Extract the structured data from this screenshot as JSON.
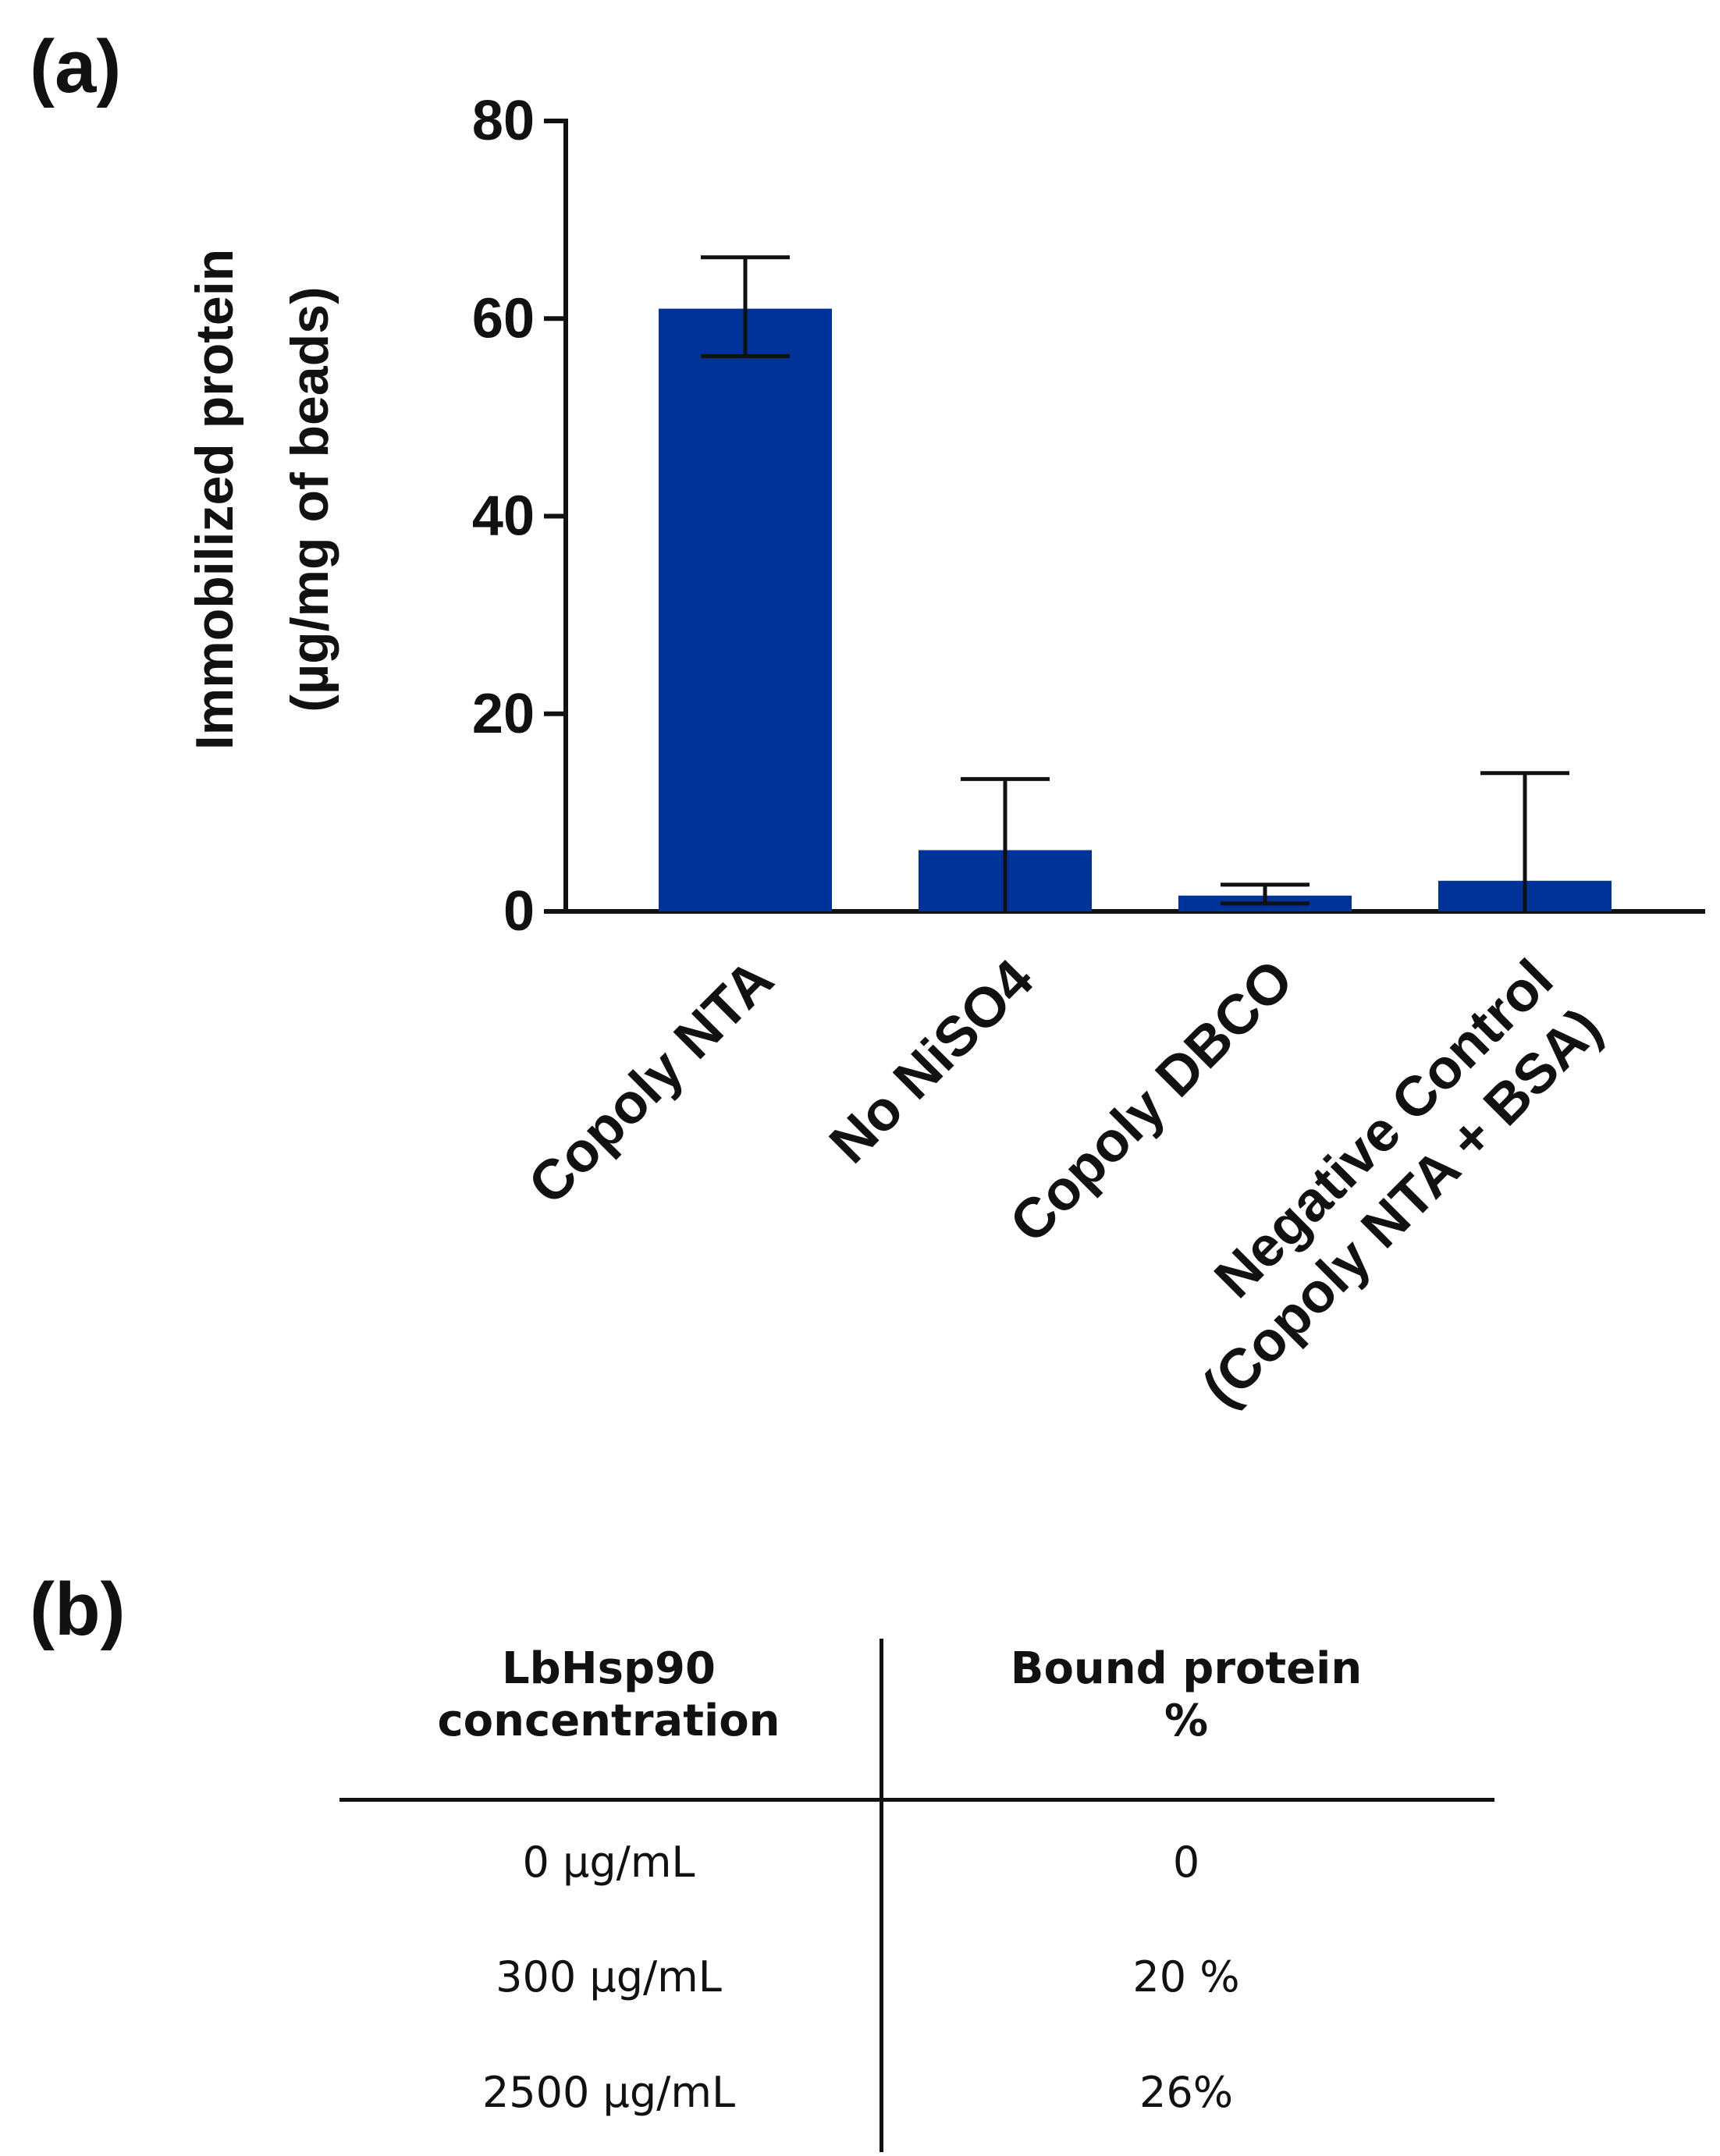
{
  "panels": {
    "a": "(a)",
    "b": "(b)"
  },
  "chart_data": {
    "type": "bar",
    "title": "",
    "xlabel": "",
    "ylabel_line1": "Immobilized protein",
    "ylabel_line2": "(µg/mg of beads)",
    "ylim": [
      0,
      80
    ],
    "yticks": [
      "0",
      "20",
      "40",
      "60",
      "80"
    ],
    "bar_color": "#003399",
    "categories": [
      {
        "line1": "Copoly NTA",
        "line2": ""
      },
      {
        "line1": "No NiSO4",
        "line2": ""
      },
      {
        "line1": "Copoly DBCO",
        "line2": ""
      },
      {
        "line1": "Negative Control",
        "line2": "(Copoly NTA + BSA)"
      }
    ],
    "values": [
      61,
      6.2,
      1.6,
      3.1
    ],
    "err_upper": [
      66.2,
      13.4,
      2.7,
      14
    ],
    "err_lower": [
      56.2,
      0,
      0.8,
      0
    ]
  },
  "table": {
    "header": {
      "col1_line1": "LbHsp90",
      "col1_line2": "concentration",
      "col2_line1": "Bound protein",
      "col2_line2": "%"
    },
    "rows": [
      {
        "concentration": "0 µg/mL",
        "bound": "0"
      },
      {
        "concentration": "300 µg/mL",
        "bound": "20 %"
      },
      {
        "concentration": "2500 µg/mL",
        "bound": "26%"
      }
    ]
  }
}
